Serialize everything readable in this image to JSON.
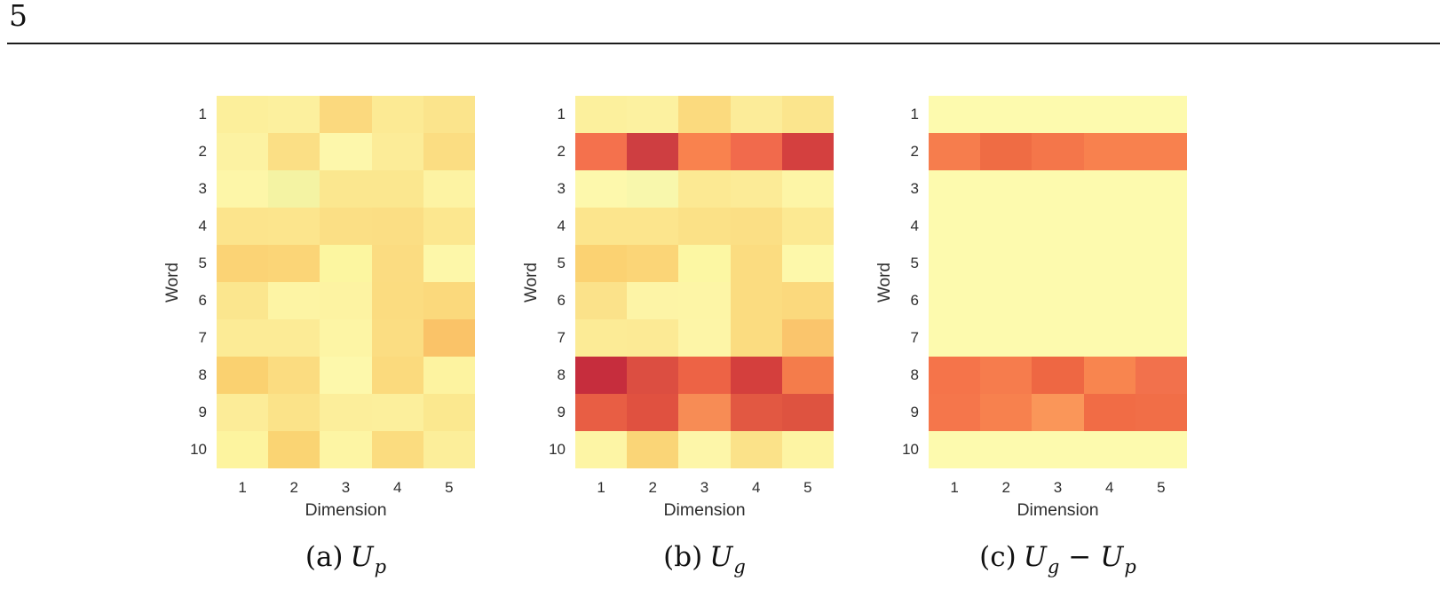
{
  "page": {
    "number": "5"
  },
  "chart_data": [
    {
      "id": "a",
      "type": "heatmap",
      "caption": {
        "prefix": "(a)",
        "terms": [
          {
            "base": "U",
            "sub": "p"
          }
        ]
      },
      "xlabel": "Dimension",
      "ylabel": "Word",
      "x_ticks": [
        "1",
        "2",
        "3",
        "4",
        "5"
      ],
      "y_ticks": [
        "1",
        "2",
        "3",
        "4",
        "5",
        "6",
        "7",
        "8",
        "9",
        "10"
      ],
      "color_scale": "YlOrRd-like, no colorbar shown; cell colors encode magnitude",
      "cell_colors": [
        [
          "#fcef9b",
          "#fcf09e",
          "#fbd97e",
          "#fcea94",
          "#fbe48c"
        ],
        [
          "#fcf2a2",
          "#fbdf85",
          "#fdf7ab",
          "#fcec98",
          "#fbdd82"
        ],
        [
          "#fdf6a8",
          "#f4f3a3",
          "#fbe78f",
          "#fbe78f",
          "#fdf3a3"
        ],
        [
          "#fce48c",
          "#fce58d",
          "#fbdf85",
          "#fbde84",
          "#fce78f"
        ],
        [
          "#fbd375",
          "#fbd577",
          "#fcf6a0",
          "#fbdc81",
          "#fdf7a9"
        ],
        [
          "#fbe68e",
          "#fdf4a4",
          "#fdf3a2",
          "#fbdc80",
          "#fbd97c"
        ],
        [
          "#fceb96",
          "#fceb96",
          "#fdf5a5",
          "#fbdd82",
          "#fac368"
        ],
        [
          "#fad170",
          "#fbdc80",
          "#fdf8ab",
          "#fbda7d",
          "#fdf3a0"
        ],
        [
          "#fcec98",
          "#fbe389",
          "#fcee9b",
          "#fcef9c",
          "#fbe88f"
        ],
        [
          "#fdf49f",
          "#fad473",
          "#fdf5a4",
          "#fbdc7f",
          "#fcee9a"
        ]
      ]
    },
    {
      "id": "b",
      "type": "heatmap",
      "caption": {
        "prefix": "(b)",
        "terms": [
          {
            "base": "U",
            "sub": "g"
          }
        ]
      },
      "xlabel": "Dimension",
      "ylabel": "Word",
      "x_ticks": [
        "1",
        "2",
        "3",
        "4",
        "5"
      ],
      "y_ticks": [
        "1",
        "2",
        "3",
        "4",
        "5",
        "6",
        "7",
        "8",
        "9",
        "10"
      ],
      "color_scale": "YlOrRd-like, no colorbar shown; cell colors encode magnitude",
      "cell_colors": [
        [
          "#fcf09d",
          "#fcf1a0",
          "#fbda7e",
          "#fcec99",
          "#fbe58d"
        ],
        [
          "#f4714d",
          "#ce3e41",
          "#f9824e",
          "#f16a4c",
          "#d4403f"
        ],
        [
          "#fdf8ac",
          "#f8f7ac",
          "#fce993",
          "#fceb97",
          "#fdf5a6"
        ],
        [
          "#fce58d",
          "#fce58d",
          "#fbe187",
          "#fbdf85",
          "#fce992"
        ],
        [
          "#fbd272",
          "#fbd577",
          "#fcf7a3",
          "#fbdc80",
          "#fdf8aa"
        ],
        [
          "#fbe28a",
          "#fdf4a6",
          "#fdf5a6",
          "#fbdc80",
          "#fbd97d"
        ],
        [
          "#fceb96",
          "#fcea95",
          "#fdf5a7",
          "#fbdc80",
          "#fac56c"
        ],
        [
          "#c62d3d",
          "#dc4e41",
          "#ed6345",
          "#d43f3d",
          "#f47c4b"
        ],
        [
          "#e85e44",
          "#e05140",
          "#f78c55",
          "#e25842",
          "#de5340"
        ],
        [
          "#fdf5a5",
          "#fad577",
          "#fdf6a9",
          "#fbe289",
          "#fdf4a3"
        ]
      ]
    },
    {
      "id": "c",
      "type": "heatmap",
      "caption": {
        "prefix": "(c)",
        "terms": [
          {
            "base": "U",
            "sub": "g"
          },
          {
            "op": "−"
          },
          {
            "base": "U",
            "sub": "p"
          }
        ]
      },
      "xlabel": "Dimension",
      "ylabel": "Word",
      "x_ticks": [
        "1",
        "2",
        "3",
        "4",
        "5"
      ],
      "y_ticks": [
        "1",
        "2",
        "3",
        "4",
        "5",
        "6",
        "7",
        "8",
        "9",
        "10"
      ],
      "color_scale": "YlOrRd-like, no colorbar shown; cell colors encode magnitude",
      "cell_colors": [
        [
          "#fdfaae",
          "#fdfaae",
          "#fdfaae",
          "#fdfaae",
          "#fdfaae"
        ],
        [
          "#f67d4d",
          "#ef6c44",
          "#f4764a",
          "#f8814e",
          "#f8814e"
        ],
        [
          "#fdfaae",
          "#fdfaae",
          "#fdfaae",
          "#fdfaae",
          "#fdfaae"
        ],
        [
          "#fdfaae",
          "#fdfaae",
          "#fdfaae",
          "#fdfaae",
          "#fdfaae"
        ],
        [
          "#fdfaae",
          "#fdfaae",
          "#fdfaae",
          "#fdfaae",
          "#fdfaae"
        ],
        [
          "#fdfaae",
          "#fdfaae",
          "#fdfaae",
          "#fdfaae",
          "#fdfaae"
        ],
        [
          "#fdfaae",
          "#fdfaae",
          "#fdfaae",
          "#fdfaae",
          "#fdfaae"
        ],
        [
          "#f5744a",
          "#f67c4d",
          "#ee6743",
          "#f8854f",
          "#f2714c"
        ],
        [
          "#f5764b",
          "#f7814e",
          "#fa9659",
          "#f16c45",
          "#f16e47"
        ],
        [
          "#fdfaae",
          "#fdfaae",
          "#fdfaae",
          "#fdfaae",
          "#fdfaae"
        ]
      ]
    }
  ]
}
